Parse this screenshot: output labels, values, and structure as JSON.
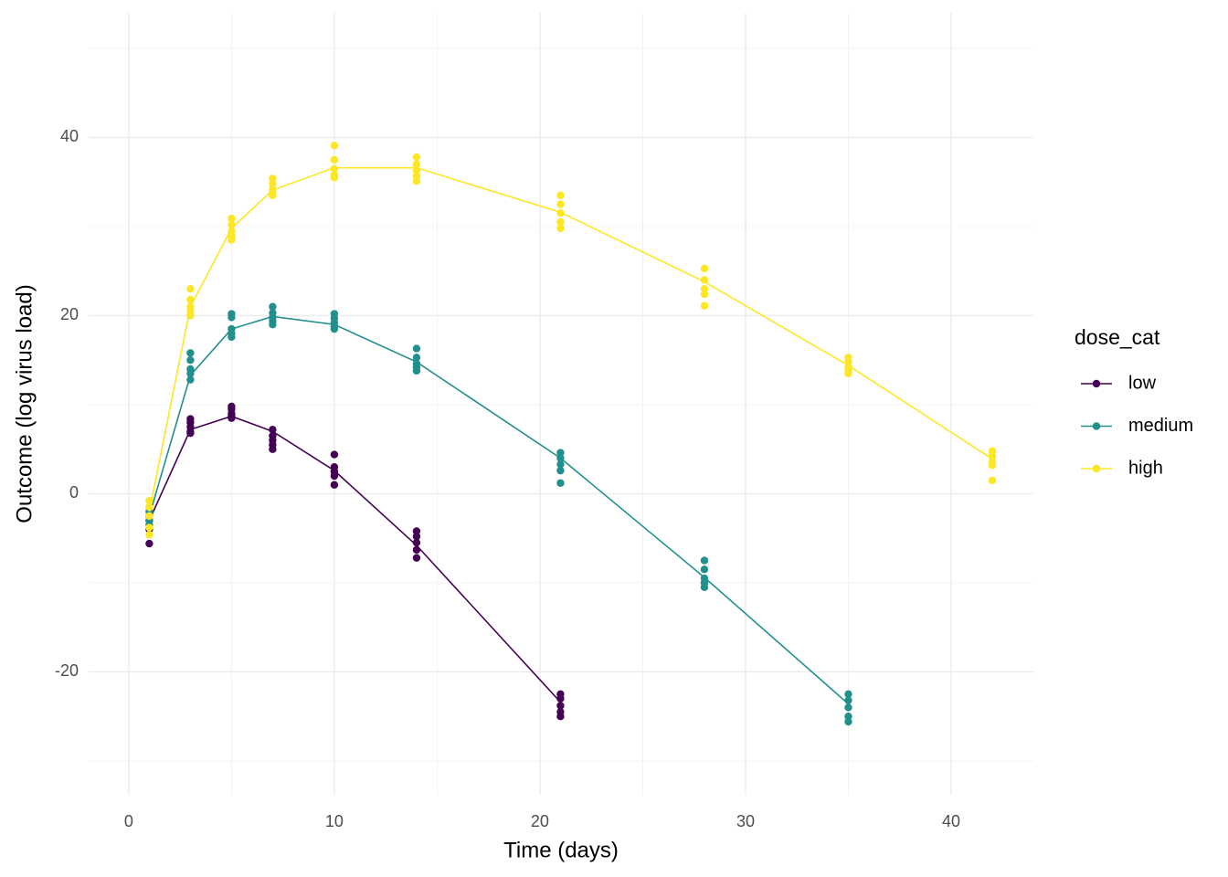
{
  "chart_data": {
    "type": "line",
    "x_label": "Time (days)",
    "y_label": "Outcome (log virus load)",
    "xlim": [
      -1.95,
      44
    ],
    "ylim": [
      -33.8,
      54
    ],
    "xticks": [
      0,
      10,
      20,
      30,
      40
    ],
    "yticks": [
      -20,
      0,
      20,
      40
    ],
    "xminor": [
      5,
      15,
      25,
      35
    ],
    "yminor": [
      -30,
      -10,
      10,
      30,
      50
    ],
    "grid": true,
    "legend_title": "dose_cat",
    "legend": "right",
    "series": [
      {
        "name": "low",
        "color": "#440154",
        "x": [
          1,
          3,
          5,
          7,
          10,
          14,
          21
        ],
        "values": [
          -3,
          7.2,
          8.7,
          7.0,
          2.6,
          -5.8,
          -23.4
        ],
        "points": [
          {
            "x": 1,
            "y": [
              -5.6,
              -4,
              -3,
              -2.5
            ]
          },
          {
            "x": 3,
            "y": [
              8.4,
              8,
              7.5,
              7,
              6.8
            ]
          },
          {
            "x": 5,
            "y": [
              9.8,
              9.5,
              9,
              8.7,
              8.5
            ]
          },
          {
            "x": 7,
            "y": [
              7.2,
              6.5,
              6,
              5.5,
              5
            ]
          },
          {
            "x": 10,
            "y": [
              4.4,
              3,
              2.5,
              2,
              1
            ]
          },
          {
            "x": 14,
            "y": [
              -4.2,
              -4.8,
              -5.5,
              -6.3,
              -7.2
            ]
          },
          {
            "x": 21,
            "y": [
              -22.5,
              -23,
              -23.8,
              -24.5,
              -25
            ]
          }
        ]
      },
      {
        "name": "medium",
        "color": "#21908C",
        "x": [
          1,
          3,
          5,
          7,
          10,
          14,
          21,
          28,
          35
        ],
        "values": [
          -2.5,
          13.3,
          18.5,
          19.9,
          19.0,
          14.8,
          4.0,
          -9.4,
          -23.6
        ],
        "points": [
          {
            "x": 1,
            "y": [
              -2,
              -2.5,
              -3,
              -3.5
            ]
          },
          {
            "x": 3,
            "y": [
              15.8,
              15,
              14,
              13.5,
              12.8
            ]
          },
          {
            "x": 5,
            "y": [
              20.2,
              19.8,
              18.5,
              18,
              17.6
            ]
          },
          {
            "x": 7,
            "y": [
              21,
              20.3,
              19.8,
              19.4,
              19
            ]
          },
          {
            "x": 10,
            "y": [
              20.2,
              19.7,
              19.2,
              18.8,
              18.5
            ]
          },
          {
            "x": 14,
            "y": [
              16.3,
              15.3,
              14.6,
              14.2,
              13.8
            ]
          },
          {
            "x": 21,
            "y": [
              4.6,
              4,
              3.3,
              2.6,
              1.2
            ]
          },
          {
            "x": 28,
            "y": [
              -7.5,
              -8.5,
              -9.5,
              -10,
              -10.5
            ]
          },
          {
            "x": 35,
            "y": [
              -22.5,
              -23.2,
              -24,
              -25,
              -25.6
            ]
          }
        ]
      },
      {
        "name": "high",
        "color": "#FDE725",
        "x": [
          1,
          3,
          5,
          7,
          10,
          14,
          21,
          28,
          35,
          42
        ],
        "values": [
          -2.0,
          21.0,
          29.8,
          34.1,
          36.6,
          36.6,
          31.6,
          23.8,
          14.4,
          3.9
        ],
        "points": [
          {
            "x": 1,
            "y": [
              -0.8,
              -1.5,
              -2.5,
              -3.8,
              -4.6
            ]
          },
          {
            "x": 3,
            "y": [
              23,
              21.8,
              21,
              20.5,
              20
            ]
          },
          {
            "x": 5,
            "y": [
              30.9,
              30.2,
              29.5,
              28.9,
              28.5
            ]
          },
          {
            "x": 7,
            "y": [
              35.4,
              34.8,
              34.2,
              33.8,
              33.5
            ]
          },
          {
            "x": 10,
            "y": [
              39.1,
              37.5,
              36.5,
              35.8,
              35.5
            ]
          },
          {
            "x": 14,
            "y": [
              37.8,
              37,
              36.3,
              35.7,
              35.1
            ]
          },
          {
            "x": 21,
            "y": [
              33.5,
              32.5,
              31.5,
              30.5,
              29.8
            ]
          },
          {
            "x": 28,
            "y": [
              25.3,
              24,
              23,
              22.4,
              21.1
            ]
          },
          {
            "x": 35,
            "y": [
              15.3,
              14.8,
              14.2,
              13.8,
              13.5
            ]
          },
          {
            "x": 42,
            "y": [
              4.8,
              4.2,
              3.6,
              3.2,
              1.5
            ]
          }
        ]
      }
    ]
  }
}
